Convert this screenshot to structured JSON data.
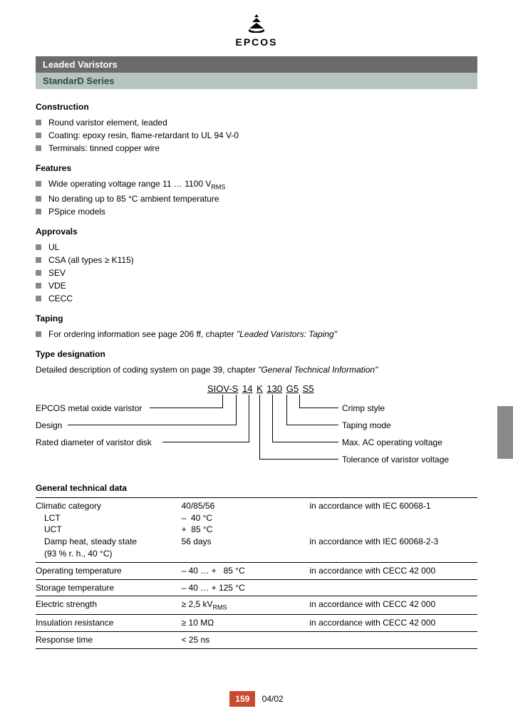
{
  "brand": "EPCOS",
  "header": {
    "line1": "Leaded Varistors",
    "line2": "StandarD Series"
  },
  "sections": {
    "construction": {
      "title": "Construction",
      "items": [
        "Round varistor element, leaded",
        "Coating: epoxy resin, flame-retardant to UL 94 V-0",
        "Terminals: tinned copper wire"
      ]
    },
    "features": {
      "title": "Features",
      "items_html": [
        "Wide operating voltage range 11 … 1100 V<span class=\"sub\">RMS</span>",
        "No derating up to 85 °C ambient temperature",
        "PSpice models"
      ]
    },
    "approvals": {
      "title": "Approvals",
      "items": [
        "UL",
        "CSA (all types ≥ K115)",
        "SEV",
        "VDE",
        "CECC"
      ]
    },
    "taping": {
      "title": "Taping",
      "text_pre": "For ordering information see page 206 ff, chapter ",
      "text_italic": "\"Leaded Varistors: Taping\""
    },
    "typedes": {
      "title": "Type designation",
      "desc_pre": "Detailed description of coding system on page 39, chapter ",
      "desc_italic": "\"General Technical Information\""
    },
    "techdata": {
      "title": "General technical data"
    }
  },
  "code_parts": [
    "SIOV-S",
    "14",
    "K",
    "130",
    "G5",
    "S5"
  ],
  "code_labels": {
    "left": [
      "EPCOS metal oxide varistor",
      "Design",
      "Rated diameter of varistor disk"
    ],
    "right": [
      "Crimp style",
      "Taping mode",
      "Max. AC operating voltage",
      "Tolerance of varistor voltage"
    ]
  },
  "table": {
    "rows": [
      {
        "c1_html": "Climatic category<br><span class=\"indent\">LCT</span><span class=\"indent\">UCT</span><span class=\"indent\">Damp heat, steady state</span><span class=\"indent\">(93 % r. h., 40 °C)</span>",
        "c2_html": "40/85/56<br>–&nbsp;&nbsp;40 °C<br>+&nbsp;&nbsp;85 °C<br>56 days",
        "c3_html": "in accordance with IEC 60068-1<br><br><br>in accordance with IEC 60068-2-3"
      },
      {
        "c1_html": "Operating temperature",
        "c2_html": "– 40 … +&nbsp;&nbsp;&nbsp;85 °C",
        "c3_html": "in accordance with CECC 42 000"
      },
      {
        "c1_html": "Storage temperature",
        "c2_html": "– 40 … + 125 °C",
        "c3_html": ""
      },
      {
        "c1_html": "Electric strength",
        "c2_html": "≥ 2,5 kV<span class=\"sub\">RMS</span>",
        "c3_html": "in accordance with CECC 42 000"
      },
      {
        "c1_html": "Insulation resistance",
        "c2_html": "≥ 10 MΩ",
        "c3_html": "in accordance with CECC 42 000"
      },
      {
        "c1_html": "Response time",
        "c2_html": "< 25 ns",
        "c3_html": ""
      }
    ]
  },
  "footer": {
    "page": "159",
    "date": "04/02"
  },
  "colors": {
    "bar_dark": "#6b6b6b",
    "bar_light": "#b5c4c0",
    "bullet": "#888888",
    "page_badge": "#c94a2f",
    "side_tab": "#8a8a8a"
  }
}
